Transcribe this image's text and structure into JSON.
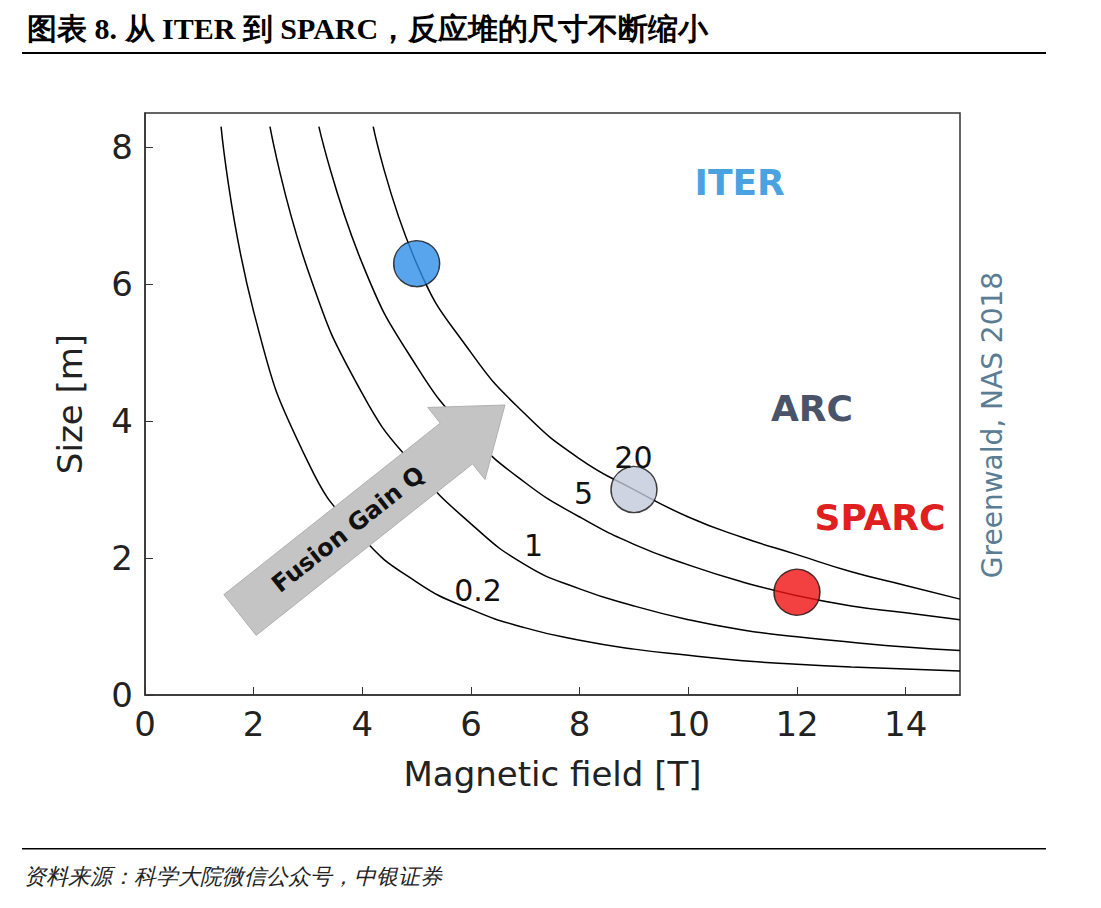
{
  "chart_data": {
    "type": "line",
    "title": "图表 8. 从 ITER 到 SPARC，反应堆的尺寸不断缩小",
    "source": "资料来源：科学大院微信公众号，中银证券",
    "credit": "Greenwald, NAS 2018",
    "arrow_label": "Fusion Gain Q",
    "xlabel": "Magnetic field [T]",
    "ylabel": "Size [m]",
    "xlim": [
      0,
      15
    ],
    "xticks": [
      0,
      2,
      4,
      6,
      8,
      10,
      12,
      14
    ],
    "ylim": [
      0,
      8.5
    ],
    "yticks": [
      0,
      2,
      4,
      6,
      8
    ],
    "grid": false,
    "series": [
      {
        "label": "0.2",
        "color": "#000000",
        "x": [
          1.4,
          2,
          3,
          4,
          5,
          6,
          7,
          8,
          9,
          10,
          11,
          12,
          13,
          14,
          15
        ],
        "values": [
          8.3,
          5.6,
          3.4,
          2.3,
          1.65,
          1.25,
          0.98,
          0.8,
          0.67,
          0.58,
          0.5,
          0.45,
          0.41,
          0.38,
          0.35
        ]
      },
      {
        "label": "1",
        "color": "#000000",
        "x": [
          2.3,
          3,
          4,
          5,
          6,
          7,
          8,
          9,
          10,
          11,
          12,
          13,
          14,
          15
        ],
        "values": [
          8.3,
          6.2,
          4.4,
          3.3,
          2.5,
          1.9,
          1.55,
          1.3,
          1.1,
          0.95,
          0.85,
          0.77,
          0.7,
          0.65
        ]
      },
      {
        "label": "5",
        "color": "#000000",
        "x": [
          3.2,
          4,
          5,
          6,
          7,
          8,
          9,
          10,
          11,
          12,
          13,
          14,
          15
        ],
        "values": [
          8.3,
          6.3,
          4.8,
          3.8,
          3.1,
          2.6,
          2.2,
          1.9,
          1.65,
          1.45,
          1.3,
          1.2,
          1.1
        ]
      },
      {
        "label": "20",
        "color": "#000000",
        "x": [
          4.2,
          5,
          6,
          7,
          8,
          9,
          10,
          11,
          12,
          13,
          14,
          15
        ],
        "values": [
          8.3,
          6.3,
          5.0,
          4.1,
          3.45,
          3.0,
          2.6,
          2.3,
          2.05,
          1.8,
          1.6,
          1.4
        ]
      }
    ],
    "points": [
      {
        "name": "ITER",
        "x": 5,
        "y": 6.3,
        "color": "#2f8fe8",
        "label_color": "#4aa3e0"
      },
      {
        "name": "ARC",
        "x": 9,
        "y": 3.0,
        "color": "#c3c9dc",
        "label_color": "#4a5468"
      },
      {
        "name": "SPARC",
        "x": 12,
        "y": 1.5,
        "color": "#f01010",
        "label_color": "#e02020"
      }
    ]
  }
}
